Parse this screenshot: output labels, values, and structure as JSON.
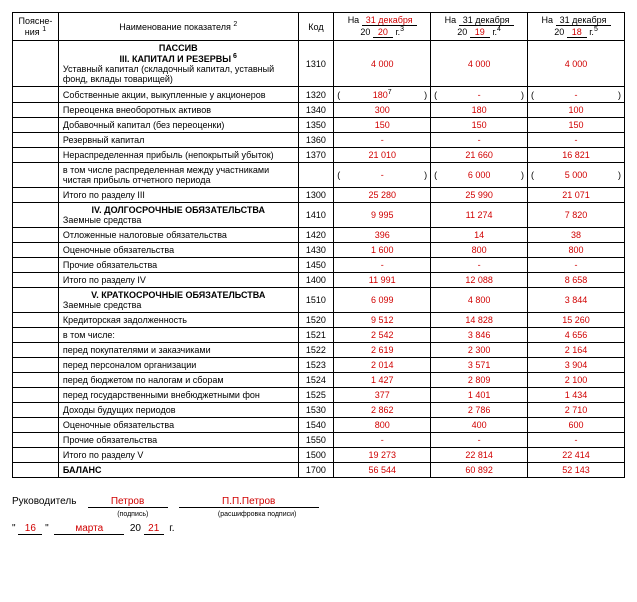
{
  "header": {
    "notes": "Поясне-\nния",
    "notes_sup": "1",
    "name": "Наименование показателя",
    "name_sup": "2",
    "code": "Код",
    "on": "На",
    "date_prefix": "20",
    "yr": "г.",
    "col3_day": "31 декабря",
    "col3_year": "20",
    "col3_sup": "3",
    "col4_day": "31 декабря",
    "col4_year": "19",
    "col4_sup": "4",
    "col5_day": "31 декабря",
    "col5_year": "18",
    "col5_sup": "5"
  },
  "section_passiv": "ПАССИВ",
  "section3": {
    "title": "III. КАПИТАЛ И РЕЗЕРВЫ",
    "sup": "6"
  },
  "section4": {
    "title": "IV. ДОЛГОСРОЧНЫЕ ОБЯЗАТЕЛЬСТВА"
  },
  "section5": {
    "title": "V. КРАТКОСРОЧНЫЕ ОБЯЗАТЕЛЬСТВА"
  },
  "rows": [
    {
      "name": "Уставный капитал (складочный капитал, уставный фонд, вклады товарищей)",
      "code": "1310",
      "v": [
        "4 000",
        "4 000",
        "4 000"
      ]
    },
    {
      "name": "Собственные акции, выкупленные у акционеров",
      "code": "1320",
      "paren": true,
      "sup7": true,
      "v": [
        "180",
        "-",
        "-"
      ]
    },
    {
      "name": "Переоценка внеоборотных активов",
      "code": "1340",
      "v": [
        "300",
        "180",
        "100"
      ]
    },
    {
      "name": "Добавочный капитал (без переоценки)",
      "code": "1350",
      "v": [
        "150",
        "150",
        "150"
      ]
    },
    {
      "name": "Резервный капитал",
      "code": "1360",
      "v": [
        "-",
        "-",
        "-"
      ]
    },
    {
      "name": "Нераспределенная прибыль (непокрытый убыток)",
      "code": "1370",
      "v": [
        "21 010",
        "21 660",
        "16 821"
      ]
    },
    {
      "name": "в том числе распределенная между участниками чистая прибыль отчетного периода",
      "code": "",
      "paren": true,
      "v": [
        "-",
        "6 000",
        "5 000"
      ]
    },
    {
      "name": "Итого по разделу III",
      "code": "1300",
      "v": [
        "25 280",
        "25 990",
        "21 071"
      ]
    }
  ],
  "rows4": [
    {
      "name": "Заемные средства",
      "code": "1410",
      "v": [
        "9 995",
        "11 274",
        "7 820"
      ]
    },
    {
      "name": "Отложенные налоговые обязательства",
      "code": "1420",
      "v": [
        "396",
        "14",
        "38"
      ]
    },
    {
      "name": "Оценочные обязательства",
      "code": "1430",
      "v": [
        "1 600",
        "800",
        "800"
      ]
    },
    {
      "name": "Прочие обязательства",
      "code": "1450",
      "v": [
        "-",
        "-",
        "-"
      ]
    },
    {
      "name": "Итого по разделу IV",
      "code": "1400",
      "v": [
        "11 991",
        "12 088",
        "8 658"
      ]
    }
  ],
  "rows5": [
    {
      "name": "Заемные средства",
      "code": "1510",
      "v": [
        "6 099",
        "4 800",
        "3 844"
      ]
    },
    {
      "name": "Кредиторская задолженность",
      "code": "1520",
      "v": [
        "9 512",
        "14 828",
        "15 260"
      ]
    },
    {
      "name": "в том числе:",
      "code": "1521",
      "v": [
        "2 542",
        "3 846",
        "4 656"
      ]
    },
    {
      "name": "перед покупателями и заказчиками",
      "code": "1522",
      "v": [
        "2 619",
        "2 300",
        "2 164"
      ]
    },
    {
      "name": "перед персоналом организации",
      "code": "1523",
      "v": [
        "2 014",
        "3 571",
        "3 904"
      ]
    },
    {
      "name": "перед бюджетом по налогам и сборам",
      "code": "1524",
      "v": [
        "1 427",
        "2 809",
        "2 100"
      ]
    },
    {
      "name": "перед государственными внебюджетными фон",
      "code": "1525",
      "v": [
        "377",
        "1 401",
        "1 434"
      ]
    },
    {
      "name": "Доходы будущих периодов",
      "code": "1530",
      "v": [
        "2 862",
        "2 786",
        "2 710"
      ]
    },
    {
      "name": "Оценочные обязательства",
      "code": "1540",
      "v": [
        "800",
        "400",
        "600"
      ]
    },
    {
      "name": "Прочие обязательства",
      "code": "1550",
      "v": [
        "-",
        "-",
        "-"
      ]
    },
    {
      "name": "Итого по разделу V",
      "code": "1500",
      "v": [
        "19 273",
        "22 814",
        "22 414"
      ]
    },
    {
      "name": "БАЛАНС",
      "code": "1700",
      "bold": true,
      "v": [
        "56 544",
        "60 892",
        "52 143"
      ]
    }
  ],
  "sign": {
    "leader_label": "Руководитель",
    "sig_value": "Петров",
    "sig_sub": "(подпись)",
    "name_value": "П.П.Петров",
    "name_sub": "(расшифровка подписи)",
    "q1": "\"",
    "day": "16",
    "q2": "\"",
    "month": "марта",
    "yr_prefix": "20",
    "yr": "21",
    "yr_suffix": "г."
  }
}
